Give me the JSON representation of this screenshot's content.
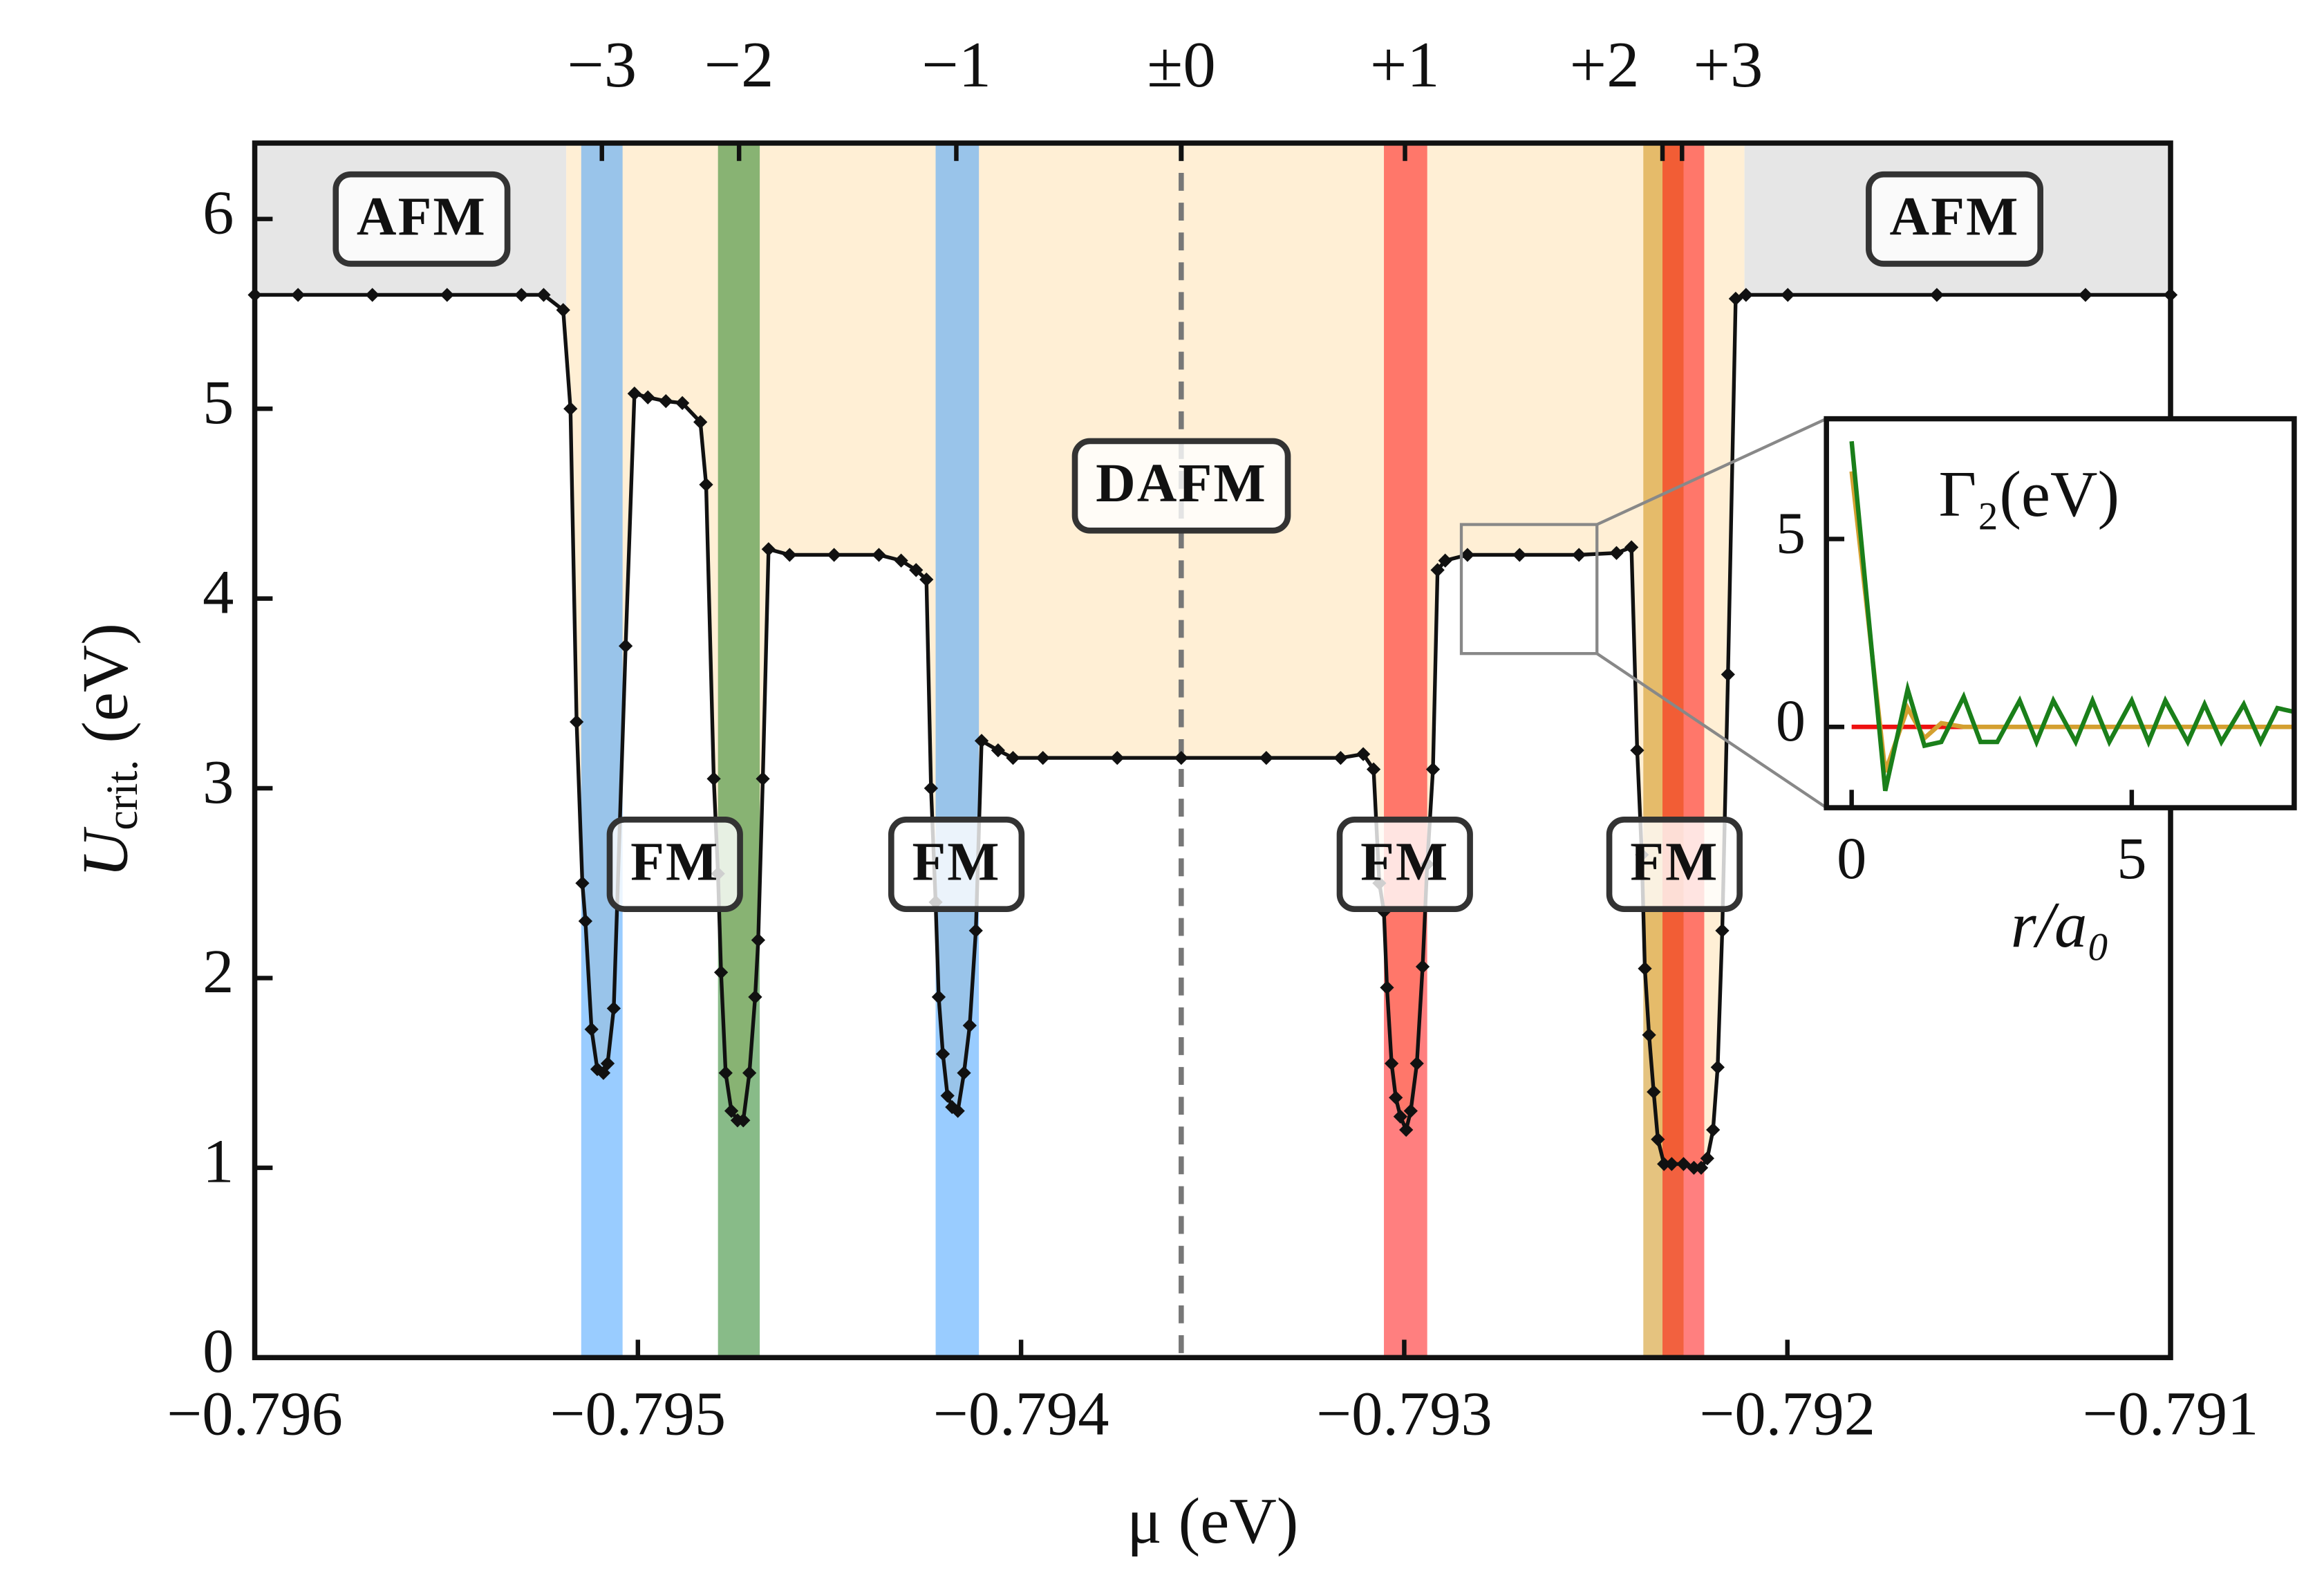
{
  "chart_data": [
    {
      "type": "line",
      "xlabel": "μ (eV)",
      "ylabel": "U",
      "ylabel_subscript": "crit.",
      "ylabel_suffix": " (eV)",
      "xlim": [
        -0.796,
        -0.791
      ],
      "ylim": [
        0,
        6.4
      ],
      "xticks": [
        {
          "value": -0.796,
          "label": "−0.796"
        },
        {
          "value": -0.795,
          "label": "−0.795"
        },
        {
          "value": -0.794,
          "label": "−0.794"
        },
        {
          "value": -0.793,
          "label": "−0.793"
        },
        {
          "value": -0.792,
          "label": "−0.792"
        },
        {
          "value": -0.791,
          "label": "−0.791"
        }
      ],
      "yticks": [
        0,
        1,
        2,
        3,
        4,
        5,
        6
      ],
      "x2ticks": [
        {
          "value": -0.795094,
          "label": "−3"
        },
        {
          "value": -0.794736,
          "label": "−2"
        },
        {
          "value": -0.794169,
          "label": "−1"
        },
        {
          "value": -0.793582,
          "label": "±0"
        },
        {
          "value": -0.792998,
          "label": "+1"
        },
        {
          "value": -0.792326,
          "label": "+2"
        },
        {
          "value": -0.792275,
          "label": "+3"
        }
      ],
      "x2tick_colors": [
        "#3399ff",
        "#1a7f1a",
        "#3399ff",
        "#111111",
        "#ee1111",
        "#d4a030",
        "#ee1111"
      ],
      "regions": [
        {
          "x": [
            -0.796,
            -0.795187
          ],
          "color": "#e6e6e6"
        },
        {
          "x": [
            -0.795187,
            -0.792112
          ],
          "color": "#ffefd5"
        },
        {
          "x": [
            -0.792112,
            -0.791
          ],
          "color": "#e6e6e6"
        }
      ],
      "bands": [
        {
          "x": [
            -0.795148,
            -0.79504
          ],
          "color": "#3399ff"
        },
        {
          "x": [
            -0.794791,
            -0.794682
          ],
          "color": "#117711"
        },
        {
          "x": [
            -0.794223,
            -0.79411
          ],
          "color": "#3399ff"
        },
        {
          "x": [
            -0.793053,
            -0.79294
          ],
          "color": "#ff0000"
        },
        {
          "x": [
            -0.792376,
            -0.792271
          ],
          "color": "#cc8800"
        },
        {
          "x": [
            -0.792326,
            -0.792217
          ],
          "color": "#ff0000"
        }
      ],
      "zoom_box": {
        "x": [
          -0.792851,
          -0.792497
        ],
        "y": [
          3.71,
          4.39
        ]
      },
      "annotations": [
        "AFM",
        "AFM",
        "DAFM",
        "FM",
        "FM",
        "FM",
        "FM"
      ],
      "color": "#111111",
      "x": [
        -0.796,
        -0.795887,
        -0.795693,
        -0.795498,
        -0.795304,
        -0.795246,
        -0.795195,
        -0.795176,
        -0.79516,
        -0.795145,
        -0.795137,
        -0.795121,
        -0.795106,
        -0.79509,
        -0.795079,
        -0.795063,
        -0.795032,
        -0.795009,
        -0.794974,
        -0.794927,
        -0.794884,
        -0.794837,
        -0.794822,
        -0.794802,
        -0.794791,
        -0.794783,
        -0.794771,
        -0.794756,
        -0.79474,
        -0.794725,
        -0.794709,
        -0.794694,
        -0.794686,
        -0.794674,
        -0.794659,
        -0.794604,
        -0.794488,
        -0.794371,
        -0.794313,
        -0.794274,
        -0.794247,
        -0.794235,
        -0.794223,
        -0.794215,
        -0.794204,
        -0.794192,
        -0.79418,
        -0.794165,
        -0.794149,
        -0.794134,
        -0.794118,
        -0.794103,
        -0.79406,
        -0.794021,
        -0.793943,
        -0.793749,
        -0.793582,
        -0.79336,
        -0.793166,
        -0.793107,
        -0.79308,
        -0.793065,
        -0.793053,
        -0.793045,
        -0.793033,
        -0.793022,
        -0.79301,
        -0.792995,
        -0.792983,
        -0.792967,
        -0.792952,
        -0.79294,
        -0.792925,
        -0.792913,
        -0.792893,
        -0.792835,
        -0.792699,
        -0.792544,
        -0.792446,
        -0.792407,
        -0.792392,
        -0.79238,
        -0.792372,
        -0.792361,
        -0.792349,
        -0.792338,
        -0.792322,
        -0.792302,
        -0.792271,
        -0.792244,
        -0.792225,
        -0.792209,
        -0.792194,
        -0.792182,
        -0.79217,
        -0.792155,
        -0.792135,
        -0.792108,
        -0.791999,
        -0.79161,
        -0.791222,
        -0.791
      ],
      "values": [
        5.6,
        5.6,
        5.6,
        5.6,
        5.6,
        5.6,
        5.52,
        5.0,
        3.35,
        2.5,
        2.3,
        1.73,
        1.52,
        1.5,
        1.55,
        1.84,
        3.75,
        5.08,
        5.06,
        5.04,
        5.03,
        4.93,
        4.6,
        3.05,
        2.55,
        2.03,
        1.5,
        1.3,
        1.25,
        1.25,
        1.5,
        1.9,
        2.2,
        3.05,
        4.26,
        4.23,
        4.23,
        4.23,
        4.2,
        4.15,
        4.1,
        3.0,
        2.4,
        1.9,
        1.6,
        1.38,
        1.32,
        1.3,
        1.5,
        1.75,
        2.25,
        3.25,
        3.2,
        3.16,
        3.16,
        3.16,
        3.16,
        3.16,
        3.16,
        3.18,
        3.1,
        2.5,
        2.35,
        1.95,
        1.55,
        1.37,
        1.27,
        1.2,
        1.3,
        1.55,
        2.06,
        2.6,
        3.1,
        4.15,
        4.2,
        4.23,
        4.23,
        4.23,
        4.24,
        4.27,
        3.2,
        2.65,
        2.05,
        1.7,
        1.4,
        1.15,
        1.02,
        1.02,
        1.02,
        1.0,
        1.0,
        1.05,
        1.2,
        1.53,
        2.25,
        3.6,
        5.58,
        5.6,
        5.6,
        5.6,
        5.6,
        5.6
      ]
    },
    {
      "type": "line",
      "title": "Γ₂(eV)",
      "xlabel": "r/a₀",
      "xlim": [
        -0.45,
        7.9
      ],
      "ylim": [
        -2.15,
        8.2
      ],
      "xticks": [
        0,
        5
      ],
      "yticks": [
        0,
        5
      ],
      "x": [
        0,
        0.6,
        1.0,
        1.3,
        1.6,
        2.0,
        2.3,
        2.6,
        3.0,
        3.3,
        3.6,
        4.0,
        4.3,
        4.6,
        5.0,
        5.3,
        5.6,
        6.0,
        6.3,
        6.6,
        7.0,
        7.3,
        7.6,
        7.9
      ],
      "series": [
        {
          "color": "#ee1111",
          "values": [
            0,
            0,
            0,
            0,
            0,
            0,
            0,
            0,
            0,
            0,
            0,
            0,
            0,
            0,
            0,
            0,
            0,
            0,
            0,
            0,
            0,
            0,
            0,
            0
          ]
        },
        {
          "color": "#d4a030",
          "values": [
            6.8,
            -1.2,
            0.5,
            -0.3,
            0.1,
            0,
            0,
            0,
            0,
            0,
            0,
            0,
            0,
            0,
            0,
            0,
            0,
            0,
            0,
            0,
            0,
            0,
            0,
            0
          ]
        },
        {
          "color": "#1a7f1a",
          "values": [
            7.6,
            -1.7,
            1.0,
            -0.5,
            -0.4,
            0.8,
            -0.4,
            -0.4,
            0.7,
            -0.4,
            0.7,
            -0.4,
            0.7,
            -0.4,
            0.7,
            -0.4,
            0.7,
            -0.4,
            0.6,
            -0.4,
            0.6,
            -0.4,
            0.5,
            0.4
          ]
        }
      ]
    }
  ]
}
